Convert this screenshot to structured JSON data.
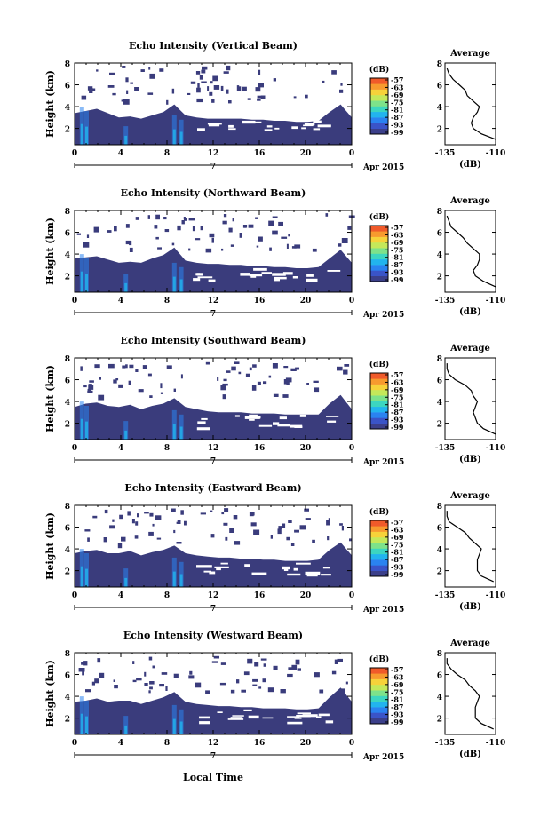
{
  "colors": {
    "background": "#3a3c7c",
    "colormap": [
      "#3b3f8a",
      "#3a54c8",
      "#2a83f0",
      "#22b4ee",
      "#3cd6c0",
      "#7de28a",
      "#c4e85a",
      "#f6d23a",
      "#f79a2e",
      "#f05a2a"
    ]
  },
  "shared": {
    "x_ticks": [
      "0",
      "4",
      "8",
      "12",
      "16",
      "20",
      "0"
    ],
    "date_tick": "7",
    "date_label": "Apr 2015",
    "ylabel": "Height (km)",
    "y_ticks": [
      "2",
      "4",
      "6",
      "8"
    ],
    "colorbar_unit": "(dB)",
    "colorbar_ticks": [
      "-57",
      "-63",
      "-69",
      "-75",
      "-81",
      "-87",
      "-93",
      "-99"
    ],
    "avg_title": "Average",
    "avg_xlabel": "(dB)",
    "xlabel": "Local Time"
  },
  "panels": [
    {
      "title": "Echo Intensity (Vertical Beam)",
      "avg_ticks": [
        "-135",
        "-110"
      ]
    },
    {
      "title": "Echo Intensity (Northward Beam)",
      "avg_ticks": [
        "-135",
        "-110"
      ]
    },
    {
      "title": "Echo Intensity (Southward Beam)",
      "avg_ticks": [
        "-135",
        "-110"
      ]
    },
    {
      "title": "Echo Intensity (Eastward Beam)",
      "avg_ticks": [
        "-135",
        "-110"
      ]
    },
    {
      "title": "Echo Intensity (Westward Beam)",
      "avg_ticks": [
        "-135",
        "-110"
      ]
    }
  ],
  "chart_data": [
    {
      "type": "heatmap",
      "title": "Echo Intensity (Vertical Beam)",
      "xlabel": "",
      "ylabel": "Height (km)",
      "xlim": [
        0,
        24
      ],
      "ylim": [
        0.5,
        8
      ],
      "colorbar": [
        -99,
        -57
      ],
      "cloud_top_km": [
        3.4,
        3.6,
        3.8,
        3.4,
        3.0,
        3.1,
        2.9,
        3.2,
        3.5,
        4.2,
        3.2,
        3.0,
        2.9,
        2.9,
        2.9,
        2.9,
        2.8,
        2.8,
        2.7,
        2.7,
        2.6,
        2.6,
        2.7,
        3.5,
        4.2,
        3.0
      ],
      "avg_profile": {
        "xlim": [
          -135,
          -110
        ],
        "ylim": [
          0.5,
          8
        ],
        "height_km": [
          1,
          1.5,
          2,
          2.5,
          3,
          3.5,
          4,
          4.5,
          5,
          5.5,
          6,
          6.5,
          7,
          7.5
        ],
        "db": [
          -110,
          -117,
          -121,
          -122,
          -121,
          -119,
          -118,
          -121,
          -124,
          -125,
          -128,
          -131,
          -133,
          -134
        ]
      }
    },
    {
      "type": "heatmap",
      "title": "Echo Intensity (Northward Beam)",
      "xlabel": "",
      "ylabel": "Height (km)",
      "xlim": [
        0,
        24
      ],
      "ylim": [
        0.5,
        8
      ],
      "colorbar": [
        -99,
        -57
      ],
      "cloud_top_km": [
        3.6,
        3.7,
        3.8,
        3.5,
        3.2,
        3.3,
        3.2,
        3.6,
        3.9,
        4.6,
        3.4,
        3.2,
        3.1,
        3.1,
        3.0,
        3.0,
        2.9,
        2.9,
        2.8,
        2.8,
        2.7,
        2.7,
        2.8,
        3.6,
        4.4,
        3.2
      ],
      "avg_profile": {
        "xlim": [
          -135,
          -110
        ],
        "ylim": [
          0.5,
          8
        ],
        "height_km": [
          1,
          1.5,
          2,
          2.5,
          3,
          3.5,
          4,
          4.5,
          5,
          5.5,
          6,
          6.5,
          7,
          7.5
        ],
        "db": [
          -110,
          -116,
          -120,
          -121,
          -119,
          -118,
          -118,
          -121,
          -124,
          -126,
          -129,
          -132,
          -133,
          -134
        ]
      }
    },
    {
      "type": "heatmap",
      "title": "Echo Intensity (Southward Beam)",
      "xlabel": "",
      "ylabel": "Height (km)",
      "xlim": [
        0,
        24
      ],
      "ylim": [
        0.5,
        8
      ],
      "colorbar": [
        -99,
        -57
      ],
      "cloud_top_km": [
        3.5,
        3.8,
        3.9,
        3.6,
        3.5,
        3.7,
        3.3,
        3.6,
        3.8,
        4.3,
        3.5,
        3.3,
        3.1,
        3.0,
        3.0,
        3.0,
        2.9,
        2.9,
        2.9,
        2.8,
        2.8,
        2.8,
        2.8,
        3.8,
        4.6,
        3.3
      ],
      "avg_profile": {
        "xlim": [
          -135,
          -110
        ],
        "ylim": [
          0.5,
          8
        ],
        "height_km": [
          1,
          1.5,
          2,
          2.5,
          3,
          3.5,
          4,
          4.5,
          5,
          5.5,
          6,
          6.5,
          7,
          7.5
        ],
        "db": [
          -110,
          -116,
          -119,
          -120,
          -121,
          -120,
          -119,
          -121,
          -122,
          -125,
          -130,
          -133,
          -134,
          -134
        ]
      }
    },
    {
      "type": "heatmap",
      "title": "Echo Intensity (Eastward Beam)",
      "xlabel": "",
      "ylabel": "Height (km)",
      "xlim": [
        0,
        24
      ],
      "ylim": [
        0.5,
        8
      ],
      "colorbar": [
        -99,
        -57
      ],
      "cloud_top_km": [
        3.6,
        3.8,
        3.9,
        3.6,
        3.6,
        3.8,
        3.4,
        3.7,
        3.9,
        4.3,
        3.6,
        3.4,
        3.3,
        3.2,
        3.2,
        3.1,
        3.1,
        3.0,
        3.0,
        2.9,
        2.9,
        2.9,
        3.0,
        3.9,
        4.6,
        3.4
      ],
      "avg_profile": {
        "xlim": [
          -135,
          -110
        ],
        "ylim": [
          0.5,
          8
        ],
        "height_km": [
          1,
          1.5,
          2,
          2.5,
          3,
          3.5,
          4,
          4.5,
          5,
          5.5,
          6,
          6.5,
          7,
          7.5
        ],
        "db": [
          -111,
          -117,
          -119,
          -119,
          -119,
          -118,
          -117,
          -120,
          -123,
          -125,
          -129,
          -133,
          -134,
          -134
        ]
      }
    },
    {
      "type": "heatmap",
      "title": "Echo Intensity (Westward Beam)",
      "xlabel": "Local Time",
      "ylabel": "Height (km)",
      "xlim": [
        0,
        24
      ],
      "ylim": [
        0.5,
        8
      ],
      "colorbar": [
        -99,
        -57
      ],
      "cloud_top_km": [
        3.5,
        3.6,
        3.8,
        3.5,
        3.6,
        3.6,
        3.3,
        3.6,
        3.9,
        4.4,
        3.5,
        3.3,
        3.2,
        3.1,
        3.1,
        3.0,
        3.0,
        2.9,
        2.9,
        2.9,
        2.8,
        2.8,
        2.9,
        3.9,
        4.8,
        3.5
      ],
      "avg_profile": {
        "xlim": [
          -135,
          -110
        ],
        "ylim": [
          0.5,
          8
        ],
        "height_km": [
          1,
          1.5,
          2,
          2.5,
          3,
          3.5,
          4,
          4.5,
          5,
          5.5,
          6,
          6.5,
          7,
          7.5
        ],
        "db": [
          -111,
          -117,
          -120,
          -120,
          -120,
          -119,
          -118,
          -120,
          -123,
          -125,
          -129,
          -132,
          -134,
          -134
        ]
      }
    }
  ]
}
